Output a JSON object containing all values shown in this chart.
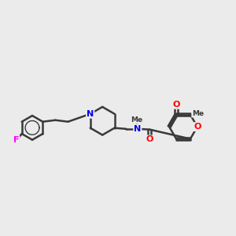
{
  "background_color": "#ebebeb",
  "bond_color": "#3a3a3a",
  "bond_width": 1.8,
  "atom_colors": {
    "N": "#0000ee",
    "O": "#ff0000",
    "F": "#ff00ff",
    "C": "#3a3a3a"
  },
  "figsize": [
    3.0,
    3.0
  ],
  "dpi": 100,
  "xlim": [
    0,
    12
  ],
  "ylim": [
    3,
    9
  ]
}
